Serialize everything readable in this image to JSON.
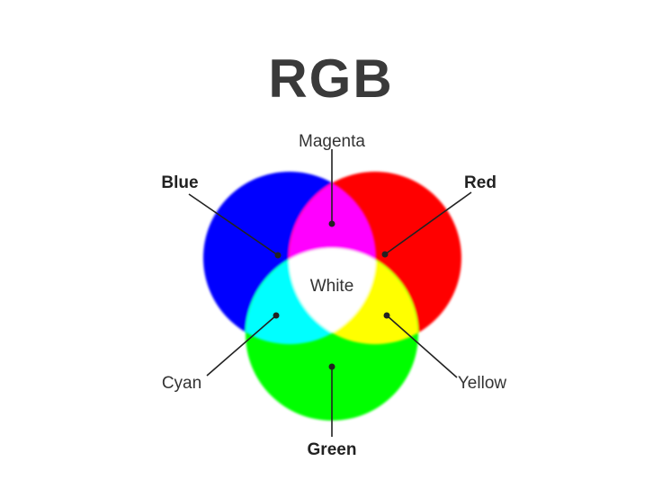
{
  "title": "RGB",
  "labels": {
    "magenta": "Magenta",
    "blue": "Blue",
    "red": "Red",
    "white": "White",
    "cyan": "Cyan",
    "yellow": "Yellow",
    "green": "Green"
  },
  "colors": {
    "red": "#ff0000",
    "green": "#00ff00",
    "blue": "#0000ff",
    "cyan": "#00ffff",
    "magenta": "#ff00ff",
    "yellow": "#ffff00",
    "white": "#ffffff",
    "title": "#3a3a3a",
    "line": "#222222"
  }
}
